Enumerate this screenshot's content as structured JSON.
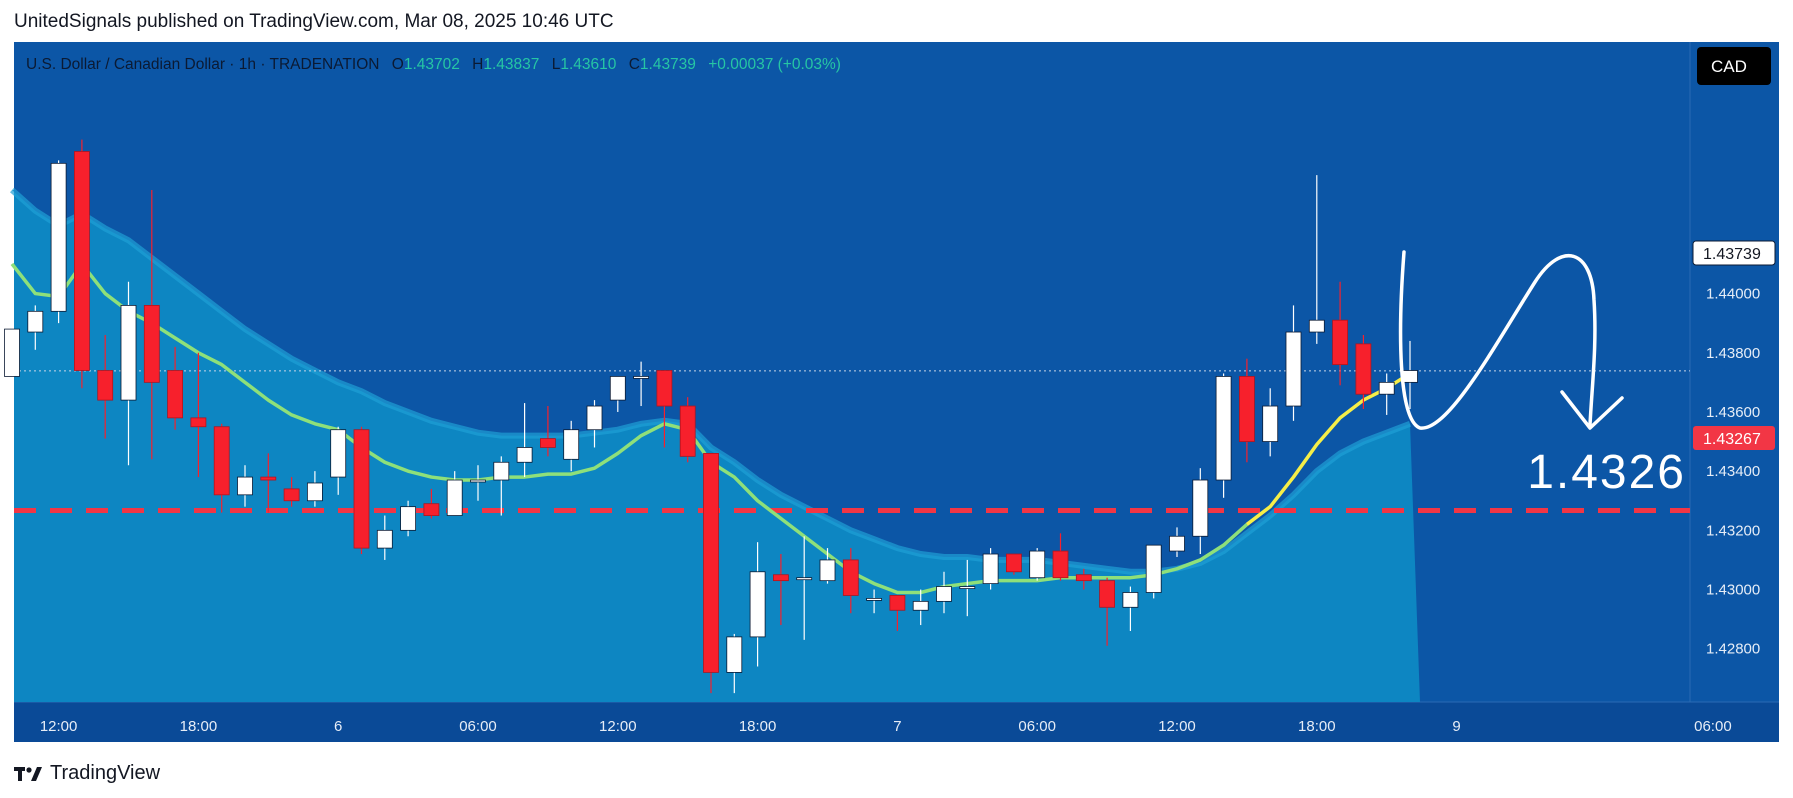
{
  "header": {
    "published_by": "UnitedSignals published on TradingView.com, Mar 08, 2025 10:46 UTC"
  },
  "legend": {
    "symbol": "U.S. Dollar / Canadian Dollar · 1h · TRADENATION",
    "o_label": "O",
    "o_value": "1.43702",
    "h_label": "H",
    "h_value": "1.43837",
    "l_label": "L",
    "l_value": "1.43610",
    "c_label": "C",
    "c_value": "1.43739",
    "change": "+0.00037 (+0.03%)"
  },
  "currency_badge": "CAD",
  "price_axis": {
    "ticks": [
      "1.44000",
      "1.43800",
      "1.43600",
      "1.43400",
      "1.43200",
      "1.43000",
      "1.42800"
    ],
    "current_price_label": "1.43739",
    "target_price_label": "1.43267"
  },
  "time_axis": {
    "labels": [
      "12:00",
      "18:00",
      "6",
      "06:00",
      "12:00",
      "18:00",
      "7",
      "06:00",
      "12:00",
      "18:00",
      "9",
      "06:00"
    ]
  },
  "annotation": {
    "target_text": "1.4326"
  },
  "footer": {
    "brand": "TradingView"
  },
  "colors": {
    "background": "#0a3f8a",
    "plot_area": "#0c56a6",
    "cloud_fill": "#0d86c2",
    "cloud_edge": "#1fa0d6",
    "up_candle": "#ffffff",
    "down_candle": "#f7202c",
    "ma_line": "#8ee07a",
    "ma_line_recent": "#f5ee48",
    "target_line": "#f23645",
    "legend_values": "#26c6a4"
  },
  "chart_data": {
    "type": "candlestick",
    "symbol": "USDCAD",
    "interval": "1h",
    "ylim": [
      1.4262,
      1.4485
    ],
    "y_ticks": [
      1.44,
      1.438,
      1.436,
      1.434,
      1.432,
      1.43,
      1.428
    ],
    "horizontal_lines": [
      {
        "price": 1.43267,
        "style": "dashed",
        "color": "#f23645"
      },
      {
        "price": 1.43739,
        "style": "dotted",
        "color": "#c8d6e8"
      }
    ],
    "candles": [
      {
        "o": 1.4372,
        "h": 1.439,
        "l": 1.4366,
        "c": 1.4388
      },
      {
        "o": 1.4387,
        "h": 1.4396,
        "l": 1.4381,
        "c": 1.4394
      },
      {
        "o": 1.4394,
        "h": 1.4445,
        "l": 1.439,
        "c": 1.4444
      },
      {
        "o": 1.4448,
        "h": 1.4452,
        "l": 1.4368,
        "c": 1.4374
      },
      {
        "o": 1.4374,
        "h": 1.4386,
        "l": 1.4351,
        "c": 1.4364
      },
      {
        "o": 1.4364,
        "h": 1.4404,
        "l": 1.4342,
        "c": 1.4396
      },
      {
        "o": 1.4396,
        "h": 1.4435,
        "l": 1.4344,
        "c": 1.437
      },
      {
        "o": 1.4374,
        "h": 1.4382,
        "l": 1.4354,
        "c": 1.4358
      },
      {
        "o": 1.4358,
        "h": 1.438,
        "l": 1.4338,
        "c": 1.4355
      },
      {
        "o": 1.4355,
        "h": 1.4356,
        "l": 1.4326,
        "c": 1.4332
      },
      {
        "o": 1.4332,
        "h": 1.4342,
        "l": 1.4328,
        "c": 1.4338
      },
      {
        "o": 1.4338,
        "h": 1.4346,
        "l": 1.4326,
        "c": 1.4337
      },
      {
        "o": 1.4334,
        "h": 1.4338,
        "l": 1.4328,
        "c": 1.433
      },
      {
        "o": 1.433,
        "h": 1.434,
        "l": 1.4328,
        "c": 1.4336
      },
      {
        "o": 1.4338,
        "h": 1.4355,
        "l": 1.4332,
        "c": 1.4354
      },
      {
        "o": 1.4354,
        "h": 1.4355,
        "l": 1.4312,
        "c": 1.4314
      },
      {
        "o": 1.4314,
        "h": 1.4325,
        "l": 1.431,
        "c": 1.432
      },
      {
        "o": 1.432,
        "h": 1.433,
        "l": 1.4318,
        "c": 1.4328
      },
      {
        "o": 1.4329,
        "h": 1.4334,
        "l": 1.4324,
        "c": 1.4325
      },
      {
        "o": 1.4325,
        "h": 1.434,
        "l": 1.4325,
        "c": 1.4337
      },
      {
        "o": 1.4337,
        "h": 1.4342,
        "l": 1.433,
        "c": 1.4337
      },
      {
        "o": 1.4337,
        "h": 1.4345,
        "l": 1.4325,
        "c": 1.4343
      },
      {
        "o": 1.4343,
        "h": 1.4363,
        "l": 1.4338,
        "c": 1.4348
      },
      {
        "o": 1.4351,
        "h": 1.4362,
        "l": 1.4345,
        "c": 1.4348
      },
      {
        "o": 1.4344,
        "h": 1.4357,
        "l": 1.434,
        "c": 1.4354
      },
      {
        "o": 1.4354,
        "h": 1.4364,
        "l": 1.4348,
        "c": 1.4362
      },
      {
        "o": 1.4364,
        "h": 1.4372,
        "l": 1.436,
        "c": 1.4372
      },
      {
        "o": 1.4372,
        "h": 1.4377,
        "l": 1.4362,
        "c": 1.4372
      },
      {
        "o": 1.4374,
        "h": 1.4374,
        "l": 1.4348,
        "c": 1.4362
      },
      {
        "o": 1.4362,
        "h": 1.4365,
        "l": 1.4343,
        "c": 1.4345
      },
      {
        "o": 1.4346,
        "h": 1.4346,
        "l": 1.4265,
        "c": 1.4272
      },
      {
        "o": 1.4272,
        "h": 1.4285,
        "l": 1.4265,
        "c": 1.4284
      },
      {
        "o": 1.4284,
        "h": 1.4316,
        "l": 1.4274,
        "c": 1.4306
      },
      {
        "o": 1.4305,
        "h": 1.4312,
        "l": 1.4288,
        "c": 1.4303
      },
      {
        "o": 1.4304,
        "h": 1.4318,
        "l": 1.4283,
        "c": 1.4304
      },
      {
        "o": 1.4303,
        "h": 1.4314,
        "l": 1.4302,
        "c": 1.431
      },
      {
        "o": 1.431,
        "h": 1.4314,
        "l": 1.4292,
        "c": 1.4298
      },
      {
        "o": 1.4297,
        "h": 1.43,
        "l": 1.4292,
        "c": 1.4297
      },
      {
        "o": 1.4298,
        "h": 1.4298,
        "l": 1.4286,
        "c": 1.4293
      },
      {
        "o": 1.4293,
        "h": 1.43,
        "l": 1.4288,
        "c": 1.4296
      },
      {
        "o": 1.4296,
        "h": 1.4306,
        "l": 1.4292,
        "c": 1.4301
      },
      {
        "o": 1.4301,
        "h": 1.431,
        "l": 1.4291,
        "c": 1.4301
      },
      {
        "o": 1.4302,
        "h": 1.4314,
        "l": 1.43,
        "c": 1.4312
      },
      {
        "o": 1.4312,
        "h": 1.431,
        "l": 1.4305,
        "c": 1.4306
      },
      {
        "o": 1.4304,
        "h": 1.4314,
        "l": 1.4303,
        "c": 1.4313
      },
      {
        "o": 1.4313,
        "h": 1.4319,
        "l": 1.4303,
        "c": 1.4304
      },
      {
        "o": 1.4305,
        "h": 1.4307,
        "l": 1.43,
        "c": 1.4303
      },
      {
        "o": 1.4303,
        "h": 1.4304,
        "l": 1.4281,
        "c": 1.4294
      },
      {
        "o": 1.4294,
        "h": 1.4301,
        "l": 1.4286,
        "c": 1.4299
      },
      {
        "o": 1.4299,
        "h": 1.4315,
        "l": 1.4297,
        "c": 1.4315
      },
      {
        "o": 1.4313,
        "h": 1.4321,
        "l": 1.4311,
        "c": 1.4318
      },
      {
        "o": 1.4318,
        "h": 1.4341,
        "l": 1.4312,
        "c": 1.4337
      },
      {
        "o": 1.4337,
        "h": 1.4373,
        "l": 1.4331,
        "c": 1.4372
      },
      {
        "o": 1.4372,
        "h": 1.4378,
        "l": 1.4343,
        "c": 1.435
      },
      {
        "o": 1.435,
        "h": 1.4368,
        "l": 1.4345,
        "c": 1.4362
      },
      {
        "o": 1.4362,
        "h": 1.4396,
        "l": 1.4357,
        "c": 1.4387
      },
      {
        "o": 1.4387,
        "h": 1.444,
        "l": 1.4383,
        "c": 1.4391
      },
      {
        "o": 1.4391,
        "h": 1.4404,
        "l": 1.4369,
        "c": 1.4376
      },
      {
        "o": 1.4383,
        "h": 1.4386,
        "l": 1.4361,
        "c": 1.4366
      },
      {
        "o": 1.4366,
        "h": 1.4373,
        "l": 1.4359,
        "c": 1.437
      },
      {
        "o": 1.437,
        "h": 1.4384,
        "l": 1.4361,
        "c": 1.4374
      }
    ],
    "moving_average": [
      1.441,
      1.44,
      1.4399,
      1.441,
      1.44,
      1.4394,
      1.439,
      1.4385,
      1.438,
      1.4376,
      1.437,
      1.4364,
      1.4359,
      1.4356,
      1.4354,
      1.4348,
      1.4343,
      1.434,
      1.4338,
      1.4337,
      1.4337,
      1.4338,
      1.4338,
      1.4339,
      1.4339,
      1.4341,
      1.4346,
      1.4352,
      1.4356,
      1.4354,
      1.4343,
      1.4338,
      1.433,
      1.4324,
      1.4318,
      1.4312,
      1.4306,
      1.4302,
      1.4299,
      1.4299,
      1.4301,
      1.4302,
      1.4303,
      1.4303,
      1.4303,
      1.4304,
      1.4304,
      1.4304,
      1.4304,
      1.4305,
      1.4307,
      1.431,
      1.4315,
      1.4322,
      1.4328,
      1.4338,
      1.4349,
      1.4358,
      1.4364,
      1.4368,
      1.4373
    ],
    "cloud_upper": [
      1.4435,
      1.4428,
      1.4423,
      1.4427,
      1.4422,
      1.4418,
      1.4412,
      1.4406,
      1.44,
      1.4394,
      1.4388,
      1.4383,
      1.4378,
      1.4374,
      1.437,
      1.4367,
      1.4363,
      1.436,
      1.4357,
      1.4355,
      1.4353,
      1.4352,
      1.4352,
      1.4352,
      1.4352,
      1.4353,
      1.4354,
      1.4356,
      1.4357,
      1.4356,
      1.4348,
      1.4343,
      1.4337,
      1.4332,
      1.4328,
      1.4324,
      1.432,
      1.4317,
      1.4314,
      1.4312,
      1.4311,
      1.4311,
      1.431,
      1.431,
      1.431,
      1.4309,
      1.4308,
      1.4307,
      1.4306,
      1.4306,
      1.4307,
      1.4309,
      1.4313,
      1.4319,
      1.4325,
      1.4332,
      1.434,
      1.4346,
      1.435,
      1.4353,
      1.4356
    ]
  }
}
